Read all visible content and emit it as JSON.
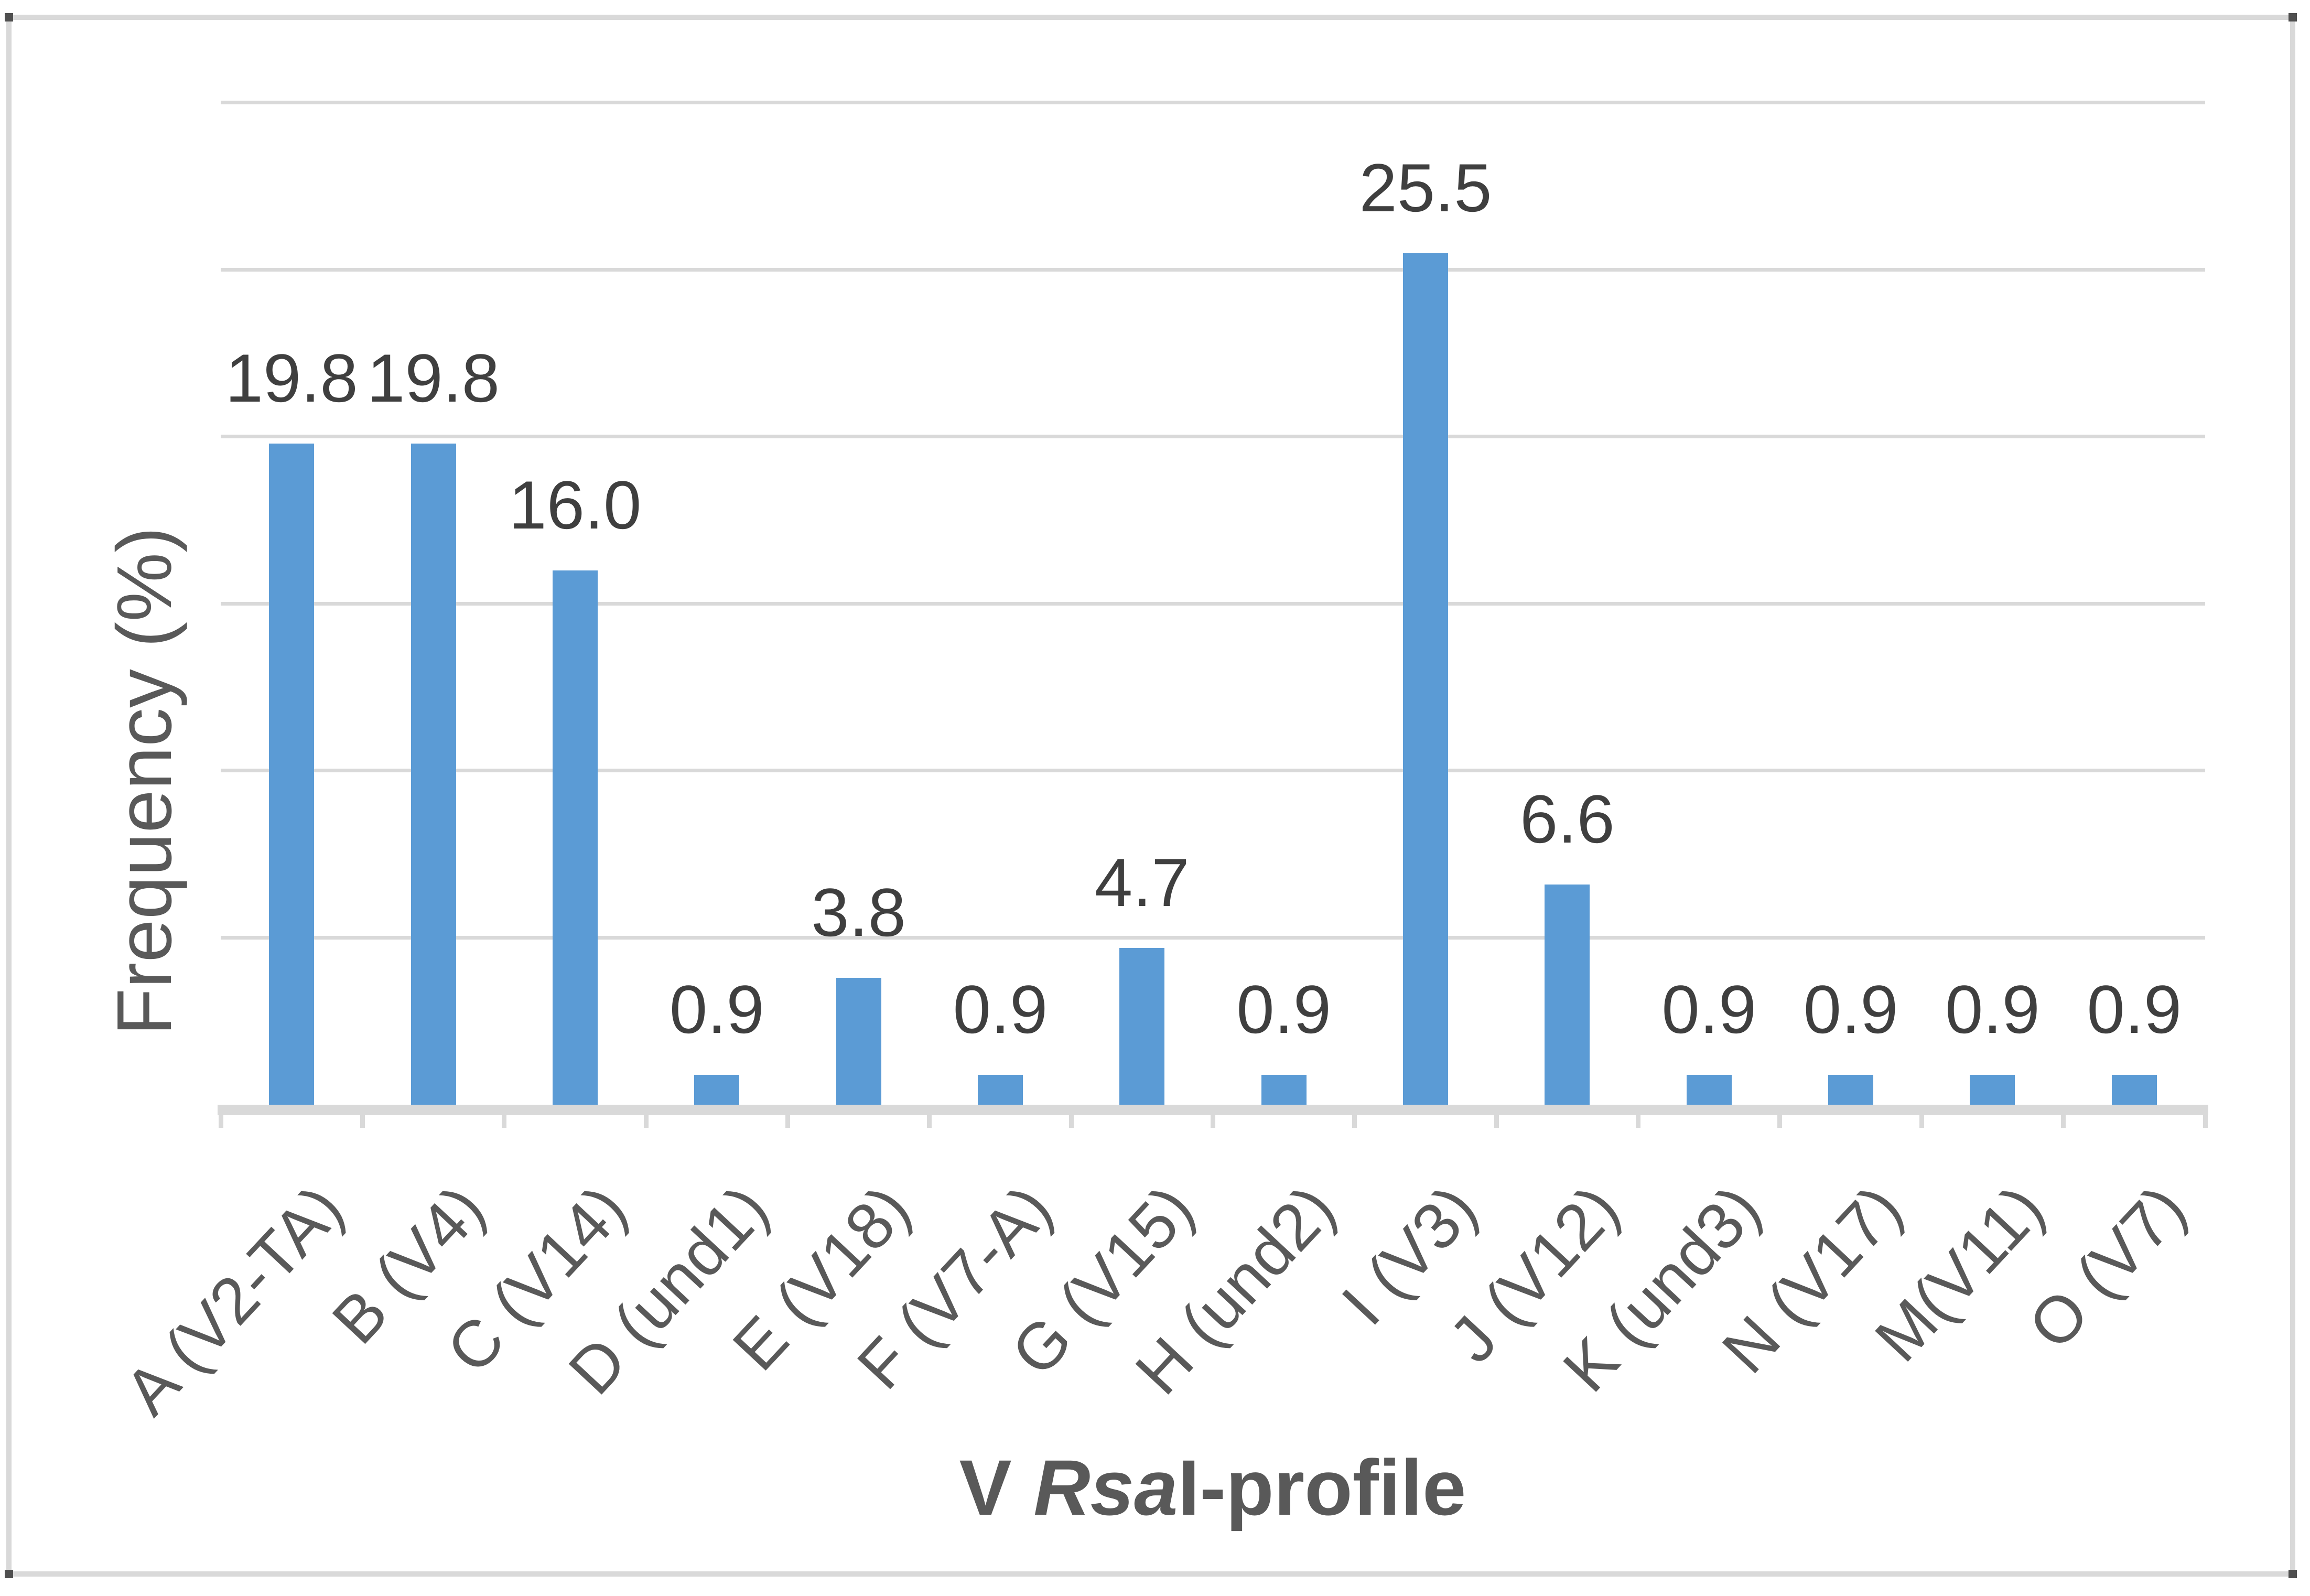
{
  "figure": {
    "background": "#ffffff",
    "border_color": "#d9d9d9",
    "handle_color": "#4f4f4f"
  },
  "chart_data": {
    "type": "bar",
    "title": "",
    "ylabel": "Frequency (%)",
    "xlabel_prefix": "V ",
    "xlabel_italic": "Rsa",
    "xlabel_suffix": "I-profile",
    "xlabel_plain": "V RsaI-profile",
    "categories": [
      "A (V2-TA)",
      "B (V4)",
      "C (V14)",
      "D (und1)",
      "E (V18)",
      "F (V7-A)",
      "G (V15)",
      "H (und2)",
      "I (V3)",
      "J (V12)",
      "K (und3)",
      "N (V17)",
      "M(V11)",
      "O (V7)"
    ],
    "values": [
      19.8,
      19.8,
      16.0,
      0.9,
      3.8,
      0.9,
      4.7,
      0.9,
      25.5,
      6.6,
      0.9,
      0.9,
      0.9,
      0.9
    ],
    "data_labels": [
      "19.8",
      "19.8",
      "16.0",
      "0.9",
      "3.8",
      "0.9",
      "4.7",
      "0.9",
      "25.5",
      "6.6",
      "0.9",
      "0.9",
      "0.9",
      "0.9"
    ],
    "ylim": [
      0,
      30
    ],
    "gridline_interval": 5,
    "grid": true,
    "legend": "none",
    "yticklabels_visible": false,
    "bar_color": "#5b9bd5",
    "gridline_color": "#d9d9d9",
    "axis_line_color": "#d9d9d9",
    "tick_color": "#d9d9d9",
    "data_label_color": "#3f3f3f",
    "axis_text_color": "#595959"
  }
}
